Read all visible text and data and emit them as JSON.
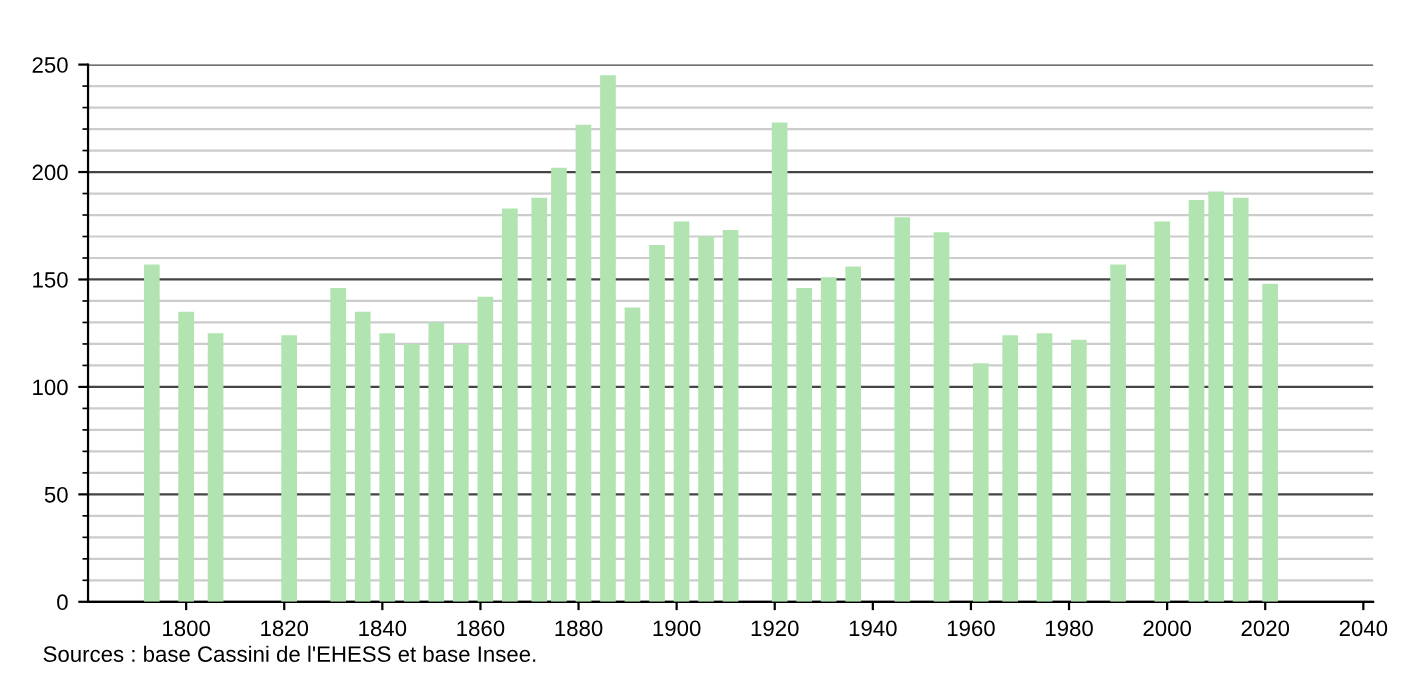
{
  "chart_data": {
    "type": "bar",
    "x": [
      1793,
      1800,
      1806,
      1821,
      1831,
      1836,
      1841,
      1846,
      1851,
      1856,
      1861,
      1866,
      1872,
      1876,
      1881,
      1886,
      1891,
      1896,
      1901,
      1906,
      1911,
      1921,
      1926,
      1931,
      1936,
      1946,
      1954,
      1962,
      1968,
      1975,
      1982,
      1990,
      1999,
      2006,
      2010,
      2015,
      2021
    ],
    "values": [
      157,
      135,
      125,
      124,
      146,
      135,
      125,
      120,
      130,
      120,
      142,
      183,
      188,
      202,
      222,
      245,
      137,
      166,
      177,
      170,
      173,
      223,
      146,
      151,
      156,
      179,
      172,
      111,
      124,
      125,
      122,
      157,
      177,
      187,
      191,
      188,
      148
    ],
    "color": "#b1e4b1",
    "xlim": [
      1780,
      2042
    ],
    "xticks": [
      1800,
      1820,
      1840,
      1860,
      1880,
      1900,
      1920,
      1940,
      1960,
      1980,
      2000,
      2020,
      2040
    ],
    "ylim": [
      0,
      250
    ],
    "yticks": [
      0,
      50,
      100,
      150,
      200,
      250
    ],
    "grid": "y",
    "annotations": [
      "Sources : base Cassini de l'EHESS et base Insee."
    ]
  }
}
